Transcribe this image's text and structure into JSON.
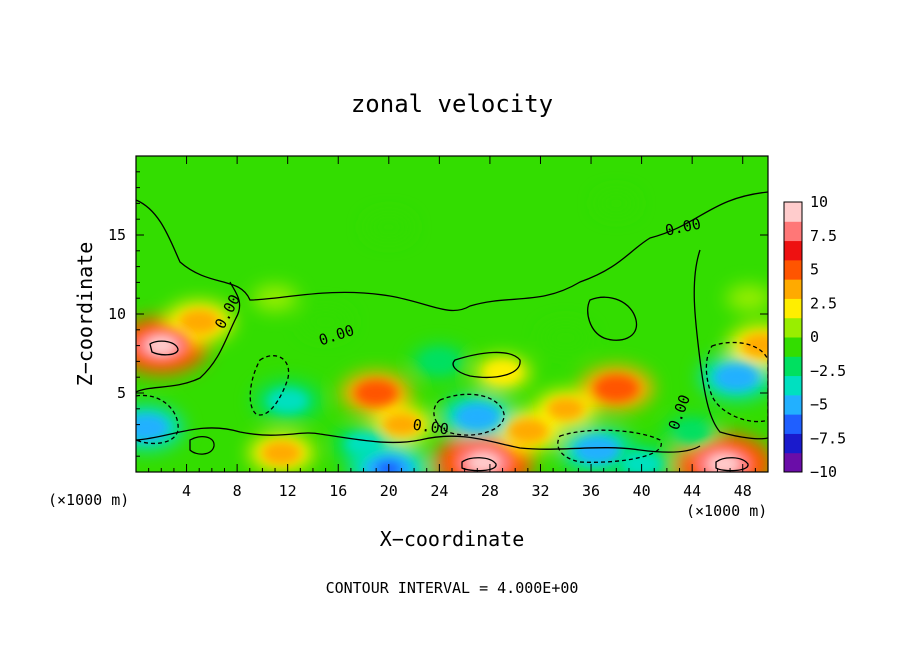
{
  "chart_data": {
    "type": "heatmap",
    "title": "zonal velocity",
    "xlabel": "X−coordinate",
    "ylabel": "Z−coordinate",
    "x_unit_left": "(×1000 m)",
    "x_unit_right": "(×1000 m)",
    "footer": "CONTOUR INTERVAL = 4.000E+00",
    "xlim": [
      0,
      50
    ],
    "ylim": [
      0,
      20
    ],
    "x_ticks": [
      4,
      8,
      12,
      16,
      20,
      24,
      28,
      32,
      36,
      40,
      44,
      48
    ],
    "x_tick_labels": [
      "4",
      "8",
      "12",
      "16",
      "20",
      "24",
      "28",
      "32",
      "36",
      "40",
      "44",
      "48"
    ],
    "y_ticks": [
      5,
      10,
      15
    ],
    "y_tick_labels": [
      "5",
      "10",
      "15"
    ],
    "colorbar": {
      "min": -10,
      "max": 10,
      "tick_values": [
        10,
        7.5,
        5,
        2.5,
        0,
        -2.5,
        -5,
        -7.5,
        -10
      ],
      "tick_labels": [
        "10",
        "7.5",
        "5",
        "2.5",
        "0",
        "−2.5",
        "−5",
        "−7.5",
        "−10"
      ],
      "colors": [
        "#6a0da8",
        "#1a1acc",
        "#1f5fff",
        "#22b0ff",
        "#00e0c0",
        "#00e060",
        "#33dd00",
        "#99ee00",
        "#ffee00",
        "#ffaa00",
        "#ff5500",
        "#ee1111",
        "#ff7777",
        "#ffcccc"
      ]
    },
    "contour_labels": [
      "0.00",
      "0.00",
      "0.00",
      "0.00",
      "0.00"
    ],
    "features": [
      {
        "x": 2,
        "z": 8,
        "value": 9
      },
      {
        "x": 5,
        "z": 9.5,
        "value": 5
      },
      {
        "x": 19,
        "z": 5,
        "value": 5.5
      },
      {
        "x": 21,
        "z": 3,
        "value": 4
      },
      {
        "x": 27.5,
        "z": 0.6,
        "value": 10
      },
      {
        "x": 31,
        "z": 2.6,
        "value": 5
      },
      {
        "x": 38,
        "z": 5.3,
        "value": 6
      },
      {
        "x": 34,
        "z": 4,
        "value": 4
      },
      {
        "x": 46.5,
        "z": 0.5,
        "value": 10
      },
      {
        "x": 11.5,
        "z": 1.2,
        "value": 4.5
      },
      {
        "x": 12,
        "z": 4.5,
        "value": -5
      },
      {
        "x": 0.8,
        "z": 2.8,
        "value": -6
      },
      {
        "x": 18,
        "z": 1.8,
        "value": -4
      },
      {
        "x": 20,
        "z": 0.2,
        "value": -7
      },
      {
        "x": 27,
        "z": 3.5,
        "value": -6
      },
      {
        "x": 36.5,
        "z": 1.4,
        "value": -6
      },
      {
        "x": 40,
        "z": 0.5,
        "value": -5
      },
      {
        "x": 47.5,
        "z": 6,
        "value": -6
      },
      {
        "x": 44,
        "z": 2.5,
        "value": -3
      },
      {
        "x": 24,
        "z": 7,
        "value": -3
      },
      {
        "x": 34,
        "z": 8.5,
        "value": -2
      },
      {
        "x": 20,
        "z": 15.5,
        "value": -1.5
      },
      {
        "x": 38,
        "z": 17,
        "value": -0.5
      },
      {
        "x": 15,
        "z": 9.5,
        "value": -2
      },
      {
        "x": 48.5,
        "z": 11,
        "value": 1.5
      },
      {
        "x": 11,
        "z": 11,
        "value": 1.5
      },
      {
        "x": 29,
        "z": 6.3,
        "value": 3
      },
      {
        "x": 49.5,
        "z": 8,
        "value": 5
      }
    ]
  }
}
